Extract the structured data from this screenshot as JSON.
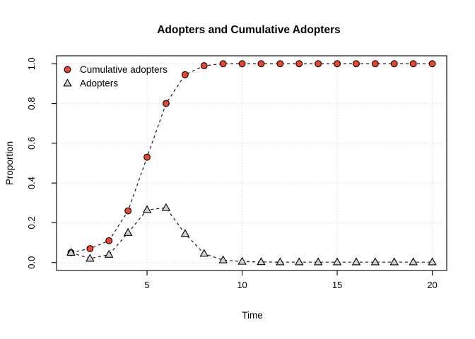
{
  "chart_data": {
    "type": "line",
    "title": "Adopters and Cumulative Adopters",
    "xlabel": "Time",
    "ylabel": "Proportion",
    "x": [
      1,
      2,
      3,
      4,
      5,
      6,
      7,
      8,
      9,
      10,
      11,
      12,
      13,
      14,
      15,
      16,
      17,
      18,
      19,
      20
    ],
    "series": [
      {
        "name": "Cumulative adopters",
        "marker": "circle",
        "marker_fill": "#f04430",
        "marker_stroke": "#000000",
        "line_color": "#1a1a1a",
        "line_style": "dashed",
        "values": [
          0.05,
          0.07,
          0.11,
          0.26,
          0.53,
          0.8,
          0.945,
          0.99,
          1.0,
          1.0,
          1.0,
          1.0,
          1.0,
          1.0,
          1.0,
          1.0,
          1.0,
          1.0,
          1.0,
          1.0
        ]
      },
      {
        "name": "Adopters",
        "marker": "triangle",
        "marker_fill": "#d3d3d3",
        "marker_stroke": "#000000",
        "line_color": "#1a1a1a",
        "line_style": "dashed",
        "values": [
          0.05,
          0.02,
          0.04,
          0.15,
          0.265,
          0.275,
          0.145,
          0.045,
          0.012,
          0.005,
          0.003,
          0.002,
          0.002,
          0.002,
          0.002,
          0.002,
          0.002,
          0.002,
          0.002,
          0.002
        ]
      }
    ],
    "xticks": [
      5,
      10,
      15,
      20
    ],
    "xtick_labels": [
      "5",
      "10",
      "15",
      "20"
    ],
    "yticks": [
      0.0,
      0.2,
      0.4,
      0.6,
      0.8,
      1.0
    ],
    "ytick_labels": [
      "0.0",
      "0.2",
      "0.4",
      "0.6",
      "0.8",
      "1.0"
    ],
    "xlim": [
      0.24,
      20.76
    ],
    "ylim": [
      -0.04,
      1.04
    ],
    "grid": true,
    "grid_color": "#d0d0d0",
    "axis_color": "#000000",
    "background": "#ffffff",
    "legend_position": "top-left"
  }
}
